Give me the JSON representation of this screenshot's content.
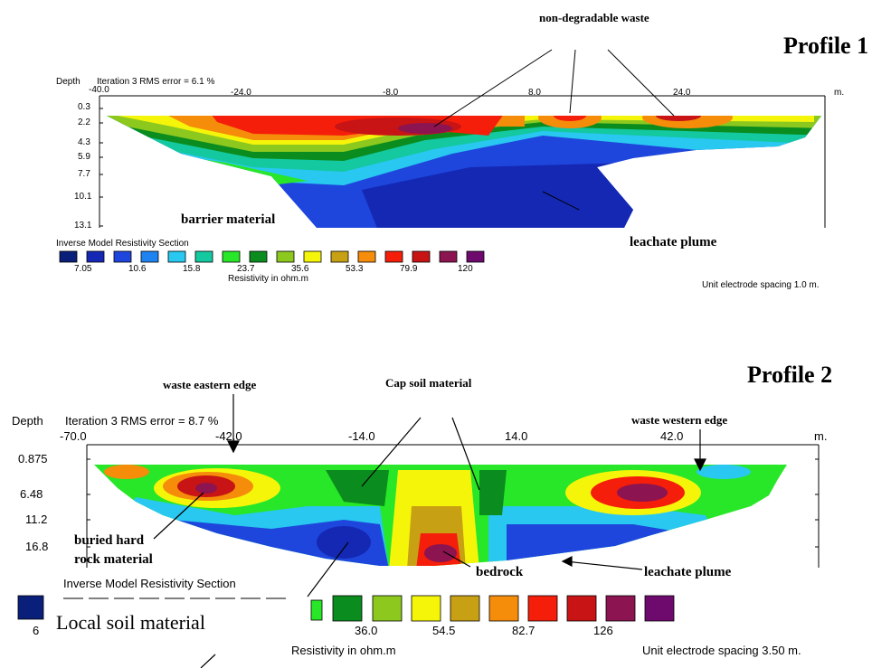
{
  "profile1": {
    "title": "Profile 1",
    "depth_label": "Depth",
    "iteration": "Iteration 3 RMS error = 6.1 %",
    "x_ticks": [
      "-40.0",
      "-24.0",
      "-8.0",
      "8.0",
      "24.0"
    ],
    "x_unit": "m.",
    "depth_ticks": [
      "0.3",
      "2.2",
      "4.3",
      "5.9",
      "7.7",
      "10.1",
      "13.1"
    ],
    "section_title": "Inverse Model Resistivity Section",
    "legend_values": [
      "7.05",
      "10.6",
      "15.8",
      "23.7",
      "35.6",
      "53.3",
      "79.9",
      "120"
    ],
    "resistivity_label": "Resistivity in ohm.m",
    "electrode_spacing": "Unit electrode spacing 1.0 m.",
    "annotations": {
      "non_degradable": "non-degradable waste",
      "barrier": "barrier material",
      "leachate": "leachate plume"
    }
  },
  "profile2": {
    "title": "Profile 2",
    "depth_label": "Depth",
    "iteration": "Iteration 3 RMS error = 8.7 %",
    "x_ticks": [
      "-70.0",
      "-42.0",
      "-14.0",
      "14.0",
      "42.0"
    ],
    "x_unit": "m.",
    "depth_ticks": [
      "0.875",
      "6.48",
      "11.2",
      "16.8"
    ],
    "section_title": "Inverse Model Resistivity Section",
    "legend_first_value": "6",
    "legend_values": [
      "36.0",
      "54.5",
      "82.7",
      "126"
    ],
    "resistivity_label": "Resistivity in ohm.m",
    "electrode_spacing": "Unit electrode spacing 3.50 m.",
    "annotations": {
      "waste_eastern": "waste eastern edge",
      "cap_soil": "Cap soil material",
      "waste_western": "waste western edge",
      "buried_rock_1": "buried hard",
      "buried_rock_2": "rock material",
      "bedrock": "bedrock",
      "leachate": "leachate plume",
      "local_soil": "Local soil material"
    }
  },
  "colors": {
    "scale": [
      "#0a1f7a",
      "#1428b4",
      "#1e46dc",
      "#1e82f0",
      "#28c8f0",
      "#14c8a0",
      "#28e628",
      "#0a8c1e",
      "#8cc81e",
      "#f5f50a",
      "#c8a014",
      "#f58c0a",
      "#f51e0a",
      "#c81414",
      "#8c1450",
      "#6e0a6e"
    ]
  }
}
